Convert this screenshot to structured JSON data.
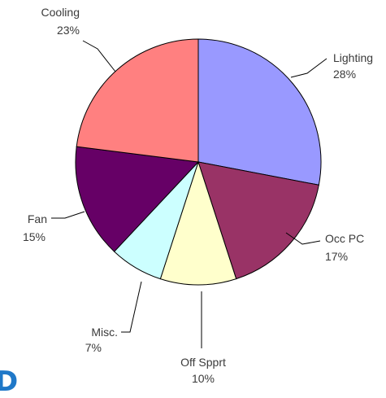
{
  "chart_data": {
    "type": "pie",
    "title": "",
    "slices": [
      {
        "label": "Lighting",
        "value": 28,
        "value_label": "28%",
        "color": "#9999ff"
      },
      {
        "label": "Occ PC",
        "value": 17,
        "value_label": "17%",
        "color": "#993366"
      },
      {
        "label": "Off Spprt",
        "value": 10,
        "value_label": "10%",
        "color": "#ffffcc"
      },
      {
        "label": "Misc.",
        "value": 7,
        "value_label": "7%",
        "color": "#ccffff"
      },
      {
        "label": "Fan",
        "value": 15,
        "value_label": "15%",
        "color": "#660066"
      },
      {
        "label": "Cooling",
        "value": 23,
        "value_label": "23%",
        "color": "#ff8080"
      }
    ],
    "start_angle": "12 o'clock",
    "direction": "clockwise",
    "legend": "none"
  },
  "edge_text": "D"
}
